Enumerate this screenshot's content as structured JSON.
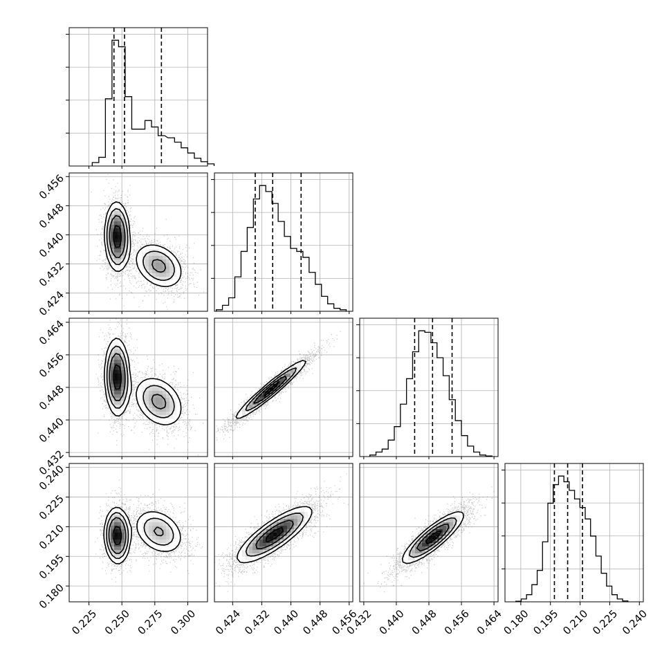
{
  "chart_data": {
    "type": "corner",
    "grid": true,
    "params": [
      {
        "range": [
          0.21,
          0.315
        ],
        "ticks": [
          "0.225",
          "0.250",
          "0.275",
          "0.300"
        ],
        "quantiles": [
          0.244,
          0.252,
          0.28
        ],
        "hist": {
          "start": 0.2275,
          "width": 0.005,
          "counts": [
            8,
            20,
            155,
            290,
            275,
            160,
            85,
            85,
            105,
            90,
            70
          ]
        },
        "hist_tail": {
          "start": 0.28,
          "width": 0.005,
          "counts": [
            80,
            65,
            55,
            42,
            30,
            18,
            10,
            5
          ]
        },
        "mix": [
          {
            "w": 0.58,
            "mean": 0.2465,
            "sd": 0.0045
          },
          {
            "w": 0.42,
            "mean": 0.278,
            "sd": 0.0095
          }
        ]
      },
      {
        "range": [
          0.419,
          0.457
        ],
        "ticks": [
          "0.424",
          "0.432",
          "0.440",
          "0.448",
          "0.456"
        ],
        "quantiles": [
          0.4302,
          0.435,
          0.4428
        ],
        "hist_counts": [
          5,
          20,
          45,
          115,
          200,
          280,
          375,
          420,
          400,
          360,
          300,
          250,
          210,
          200,
          180,
          130,
          90,
          50,
          25,
          10,
          5
        ],
        "hist_start": 0.4195,
        "hist_width": 0.0017,
        "mix": [
          {
            "w": 0.58,
            "mean": 0.4365,
            "sd": 0.0035
          },
          {
            "w": 0.42,
            "mean": 0.4305,
            "sd": 0.0032
          }
        ]
      },
      {
        "range": [
          0.431,
          0.465
        ],
        "ticks": [
          "0.432",
          "0.440",
          "0.448",
          "0.456",
          "0.464"
        ],
        "quantiles": [
          0.4445,
          0.4489,
          0.4537
        ],
        "hist_counts": [
          5,
          15,
          25,
          55,
          100,
          175,
          260,
          350,
          420,
          415,
          380,
          330,
          270,
          190,
          120,
          70,
          35,
          15,
          5,
          2
        ],
        "hist_start": 0.4335,
        "hist_width": 0.0015,
        "mix": [
          {
            "w": 1.0,
            "mean": 0.4489,
            "sd": 0.0038
          }
        ]
      },
      {
        "range": [
          0.172,
          0.242
        ],
        "ticks": [
          "0.180",
          "0.195",
          "0.210",
          "0.225",
          "0.240"
        ],
        "quantiles": [
          0.197,
          0.2037,
          0.2112
        ],
        "hist_counts": [
          2,
          10,
          25,
          60,
          110,
          210,
          345,
          410,
          440,
          420,
          390,
          360,
          330,
          290,
          230,
          160,
          100,
          55,
          25,
          10,
          3
        ],
        "hist_start": 0.1775,
        "hist_width": 0.0027,
        "mix": [
          {
            "w": 0.58,
            "mean": 0.205,
            "sd": 0.0062
          },
          {
            "w": 0.42,
            "mean": 0.208,
            "sd": 0.007
          }
        ]
      }
    ],
    "pairs": [
      {
        "row": 1,
        "col": 0,
        "modes": [
          {
            "w": 0.58,
            "mx": 0.2465,
            "my": 0.4395,
            "sx": 0.0045,
            "sy": 0.0045,
            "rho": -0.05
          },
          {
            "w": 0.42,
            "mx": 0.278,
            "my": 0.4315,
            "sx": 0.0095,
            "sy": 0.0032,
            "rho": -0.3
          }
        ]
      },
      {
        "row": 2,
        "col": 0,
        "modes": [
          {
            "w": 0.58,
            "mx": 0.2465,
            "my": 0.4505,
            "sx": 0.0045,
            "sy": 0.0045,
            "rho": -0.05
          },
          {
            "w": 0.42,
            "mx": 0.278,
            "my": 0.4445,
            "sx": 0.0095,
            "sy": 0.0032,
            "rho": -0.3
          }
        ]
      },
      {
        "row": 2,
        "col": 1,
        "modes": [
          {
            "w": 1.0,
            "mx": 0.4345,
            "my": 0.4475,
            "sx": 0.0048,
            "sy": 0.0036,
            "rho": 0.96
          }
        ]
      },
      {
        "row": 3,
        "col": 0,
        "modes": [
          {
            "w": 0.58,
            "mx": 0.2465,
            "my": 0.2055,
            "sx": 0.0045,
            "sy": 0.0065,
            "rho": -0.05
          },
          {
            "w": 0.42,
            "mx": 0.278,
            "my": 0.2075,
            "sx": 0.0095,
            "sy": 0.0058,
            "rho": -0.3
          }
        ]
      },
      {
        "row": 3,
        "col": 1,
        "modes": [
          {
            "w": 1.0,
            "mx": 0.4355,
            "my": 0.206,
            "sx": 0.0052,
            "sy": 0.0072,
            "rho": 0.82
          }
        ]
      },
      {
        "row": 3,
        "col": 2,
        "modes": [
          {
            "w": 1.0,
            "mx": 0.449,
            "my": 0.2045,
            "sx": 0.0038,
            "sy": 0.0066,
            "rho": 0.86
          }
        ]
      }
    ]
  }
}
